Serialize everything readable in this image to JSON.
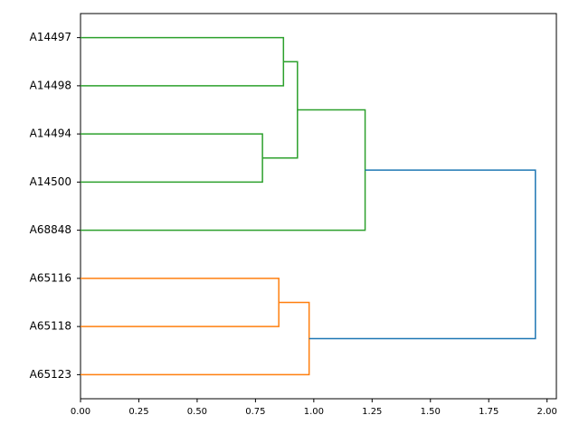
{
  "chart_data": {
    "type": "dendrogram",
    "orientation": "left",
    "leaves": [
      "A14497",
      "A14498",
      "A14494",
      "A14500",
      "A68848",
      "A65116",
      "A65118",
      "A65123"
    ],
    "merges": [
      {
        "children": [
          0,
          1
        ],
        "height": 0.87,
        "color": "#2ca02c"
      },
      {
        "children": [
          2,
          3
        ],
        "height": 0.78,
        "color": "#2ca02c"
      },
      {
        "children": [
          8,
          9
        ],
        "height": 0.93,
        "color": "#2ca02c"
      },
      {
        "children": [
          10,
          4
        ],
        "height": 1.22,
        "color": "#2ca02c"
      },
      {
        "children": [
          5,
          6
        ],
        "height": 0.85,
        "color": "#ff7f0e"
      },
      {
        "children": [
          12,
          7
        ],
        "height": 0.98,
        "color": "#ff7f0e"
      },
      {
        "children": [
          11,
          13
        ],
        "height": 1.95,
        "color": "#1f77b4"
      }
    ],
    "xlim": [
      0,
      2.04
    ],
    "xticks": [
      {
        "value": 0,
        "label": "0.00"
      },
      {
        "value": 0.25,
        "label": "0.25"
      },
      {
        "value": 0.5,
        "label": "0.50"
      },
      {
        "value": 0.75,
        "label": "0.75"
      },
      {
        "value": 1,
        "label": "1.00"
      },
      {
        "value": 1.25,
        "label": "1.25"
      },
      {
        "value": 1.5,
        "label": "1.50"
      },
      {
        "value": 1.75,
        "label": "1.75"
      },
      {
        "value": 2,
        "label": "2.00"
      }
    ]
  }
}
